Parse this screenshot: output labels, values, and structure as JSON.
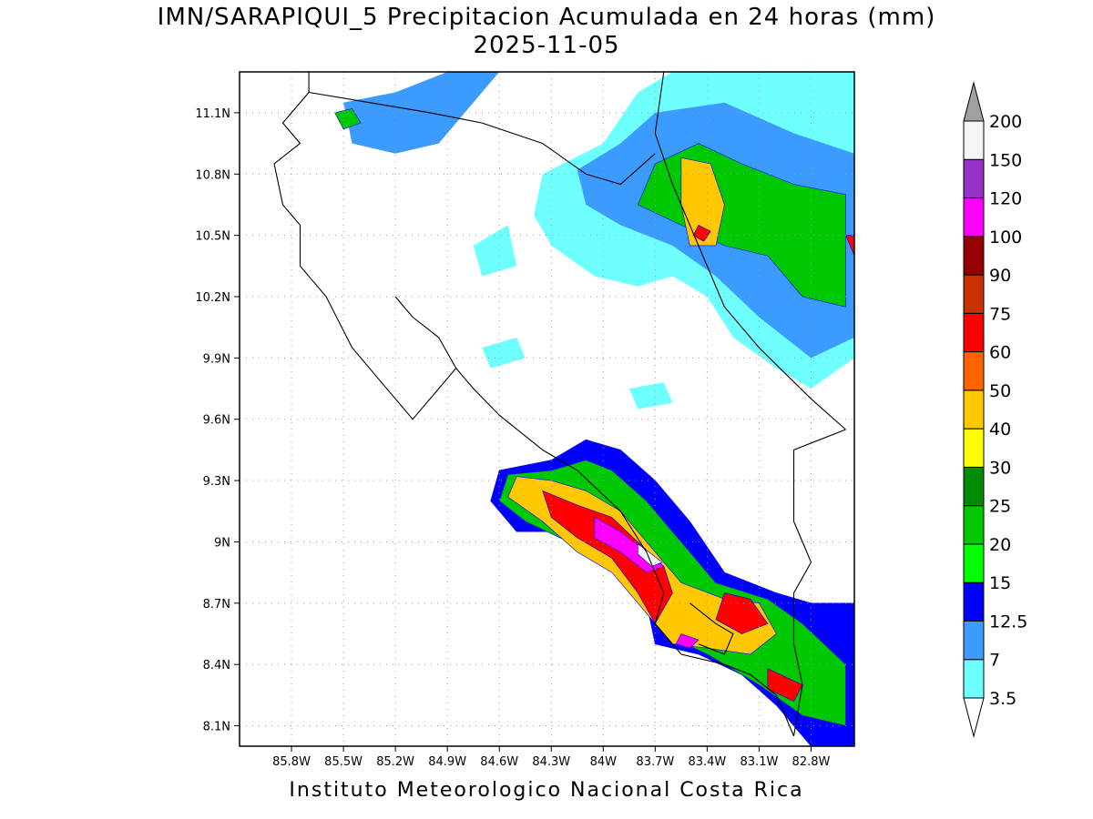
{
  "header": {
    "title_line1": "IMN/SARAPIQUI_5 Precipitacion Acumulada en 24 horas (mm)",
    "title_line2": "2025-11-05"
  },
  "footer": {
    "credit": "Instituto Meteorologico Nacional Costa Rica"
  },
  "map": {
    "lon_range": [
      -86.1,
      -82.55
    ],
    "lat_range": [
      8.0,
      11.3
    ],
    "lon_ticks": [
      {
        "value": -85.8,
        "label": "85.8W"
      },
      {
        "value": -85.5,
        "label": "85.5W"
      },
      {
        "value": -85.2,
        "label": "85.2W"
      },
      {
        "value": -84.9,
        "label": "84.9W"
      },
      {
        "value": -84.6,
        "label": "84.6W"
      },
      {
        "value": -84.3,
        "label": "84.3W"
      },
      {
        "value": -84.0,
        "label": "84W"
      },
      {
        "value": -83.7,
        "label": "83.7W"
      },
      {
        "value": -83.4,
        "label": "83.4W"
      },
      {
        "value": -83.1,
        "label": "83.1W"
      },
      {
        "value": -82.8,
        "label": "82.8W"
      }
    ],
    "lat_ticks": [
      {
        "value": 8.1,
        "label": "8.1N"
      },
      {
        "value": 8.4,
        "label": "8.4N"
      },
      {
        "value": 8.7,
        "label": "8.7N"
      },
      {
        "value": 9.0,
        "label": "9N"
      },
      {
        "value": 9.3,
        "label": "9.3N"
      },
      {
        "value": 9.6,
        "label": "9.6N"
      },
      {
        "value": 9.9,
        "label": "9.9N"
      },
      {
        "value": 10.2,
        "label": "10.2N"
      },
      {
        "value": 10.5,
        "label": "10.5N"
      },
      {
        "value": 10.8,
        "label": "10.8N"
      },
      {
        "value": 11.1,
        "label": "11.1N"
      }
    ],
    "grid": "dotted"
  },
  "colorbar": {
    "levels": [
      {
        "label": "3.5",
        "color": "#6effff"
      },
      {
        "label": "7",
        "color": "#3c9bff"
      },
      {
        "label": "12.5",
        "color": "#0000ff"
      },
      {
        "label": "15",
        "color": "#00ff00"
      },
      {
        "label": "20",
        "color": "#00c800"
      },
      {
        "label": "25",
        "color": "#008c00"
      },
      {
        "label": "30",
        "color": "#ffff00"
      },
      {
        "label": "40",
        "color": "#ffc800"
      },
      {
        "label": "50",
        "color": "#ff6400"
      },
      {
        "label": "60",
        "color": "#ff0000"
      },
      {
        "label": "75",
        "color": "#c83200"
      },
      {
        "label": "90",
        "color": "#960000"
      },
      {
        "label": "100",
        "color": "#ff00ff"
      },
      {
        "label": "120",
        "color": "#9632c8"
      },
      {
        "label": "150",
        "color": "#f5f5f5"
      },
      {
        "label": "200",
        "color": "#a0a0a0"
      }
    ],
    "end_below_color": "#ffffff",
    "end_above_color": "#a0a0a0"
  },
  "precip_regions": [
    {
      "name": "southern-pacific-band",
      "level": 2,
      "points": [
        [
          -84.6,
          9.35
        ],
        [
          -84.3,
          9.4
        ],
        [
          -84.1,
          9.5
        ],
        [
          -83.9,
          9.45
        ],
        [
          -83.7,
          9.3
        ],
        [
          -83.5,
          9.1
        ],
        [
          -83.3,
          8.85
        ],
        [
          -83.0,
          8.75
        ],
        [
          -82.8,
          8.7
        ],
        [
          -82.55,
          8.7
        ],
        [
          -82.55,
          8.0
        ],
        [
          -82.8,
          8.0
        ],
        [
          -83.0,
          8.2
        ],
        [
          -83.2,
          8.35
        ],
        [
          -83.45,
          8.45
        ],
        [
          -83.7,
          8.5
        ],
        [
          -83.75,
          8.7
        ],
        [
          -83.9,
          8.85
        ],
        [
          -84.1,
          8.95
        ],
        [
          -84.3,
          9.05
        ],
        [
          -84.5,
          9.05
        ],
        [
          -84.65,
          9.2
        ]
      ]
    },
    {
      "name": "southern-green-band",
      "level": 4,
      "points": [
        [
          -84.55,
          9.33
        ],
        [
          -84.3,
          9.35
        ],
        [
          -84.1,
          9.4
        ],
        [
          -83.95,
          9.35
        ],
        [
          -83.75,
          9.2
        ],
        [
          -83.55,
          9.0
        ],
        [
          -83.35,
          8.8
        ],
        [
          -83.05,
          8.72
        ],
        [
          -82.85,
          8.6
        ],
        [
          -82.6,
          8.4
        ],
        [
          -82.6,
          8.1
        ],
        [
          -82.85,
          8.15
        ],
        [
          -83.1,
          8.3
        ],
        [
          -83.4,
          8.45
        ],
        [
          -83.65,
          8.55
        ],
        [
          -83.75,
          8.72
        ],
        [
          -83.95,
          8.9
        ],
        [
          -84.2,
          9.0
        ],
        [
          -84.45,
          9.1
        ],
        [
          -84.6,
          9.2
        ]
      ]
    },
    {
      "name": "southern-yellow-core",
      "level": 7,
      "points": [
        [
          -84.5,
          9.32
        ],
        [
          -84.3,
          9.3
        ],
        [
          -84.1,
          9.25
        ],
        [
          -83.9,
          9.15
        ],
        [
          -83.7,
          8.95
        ],
        [
          -83.55,
          8.8
        ],
        [
          -83.3,
          8.72
        ],
        [
          -83.1,
          8.7
        ],
        [
          -83.0,
          8.55
        ],
        [
          -83.15,
          8.45
        ],
        [
          -83.4,
          8.48
        ],
        [
          -83.6,
          8.5
        ],
        [
          -83.75,
          8.65
        ],
        [
          -83.95,
          8.85
        ],
        [
          -84.15,
          8.95
        ],
        [
          -84.35,
          9.1
        ],
        [
          -84.55,
          9.22
        ]
      ]
    },
    {
      "name": "southern-red-core",
      "level": 9,
      "points": [
        [
          -84.35,
          9.25
        ],
        [
          -84.15,
          9.18
        ],
        [
          -83.95,
          9.12
        ],
        [
          -83.8,
          9.0
        ],
        [
          -83.65,
          8.88
        ],
        [
          -83.6,
          8.75
        ],
        [
          -83.7,
          8.6
        ],
        [
          -83.8,
          8.75
        ],
        [
          -83.95,
          8.92
        ],
        [
          -84.15,
          9.02
        ],
        [
          -84.3,
          9.12
        ]
      ]
    },
    {
      "name": "southern-magenta-core",
      "level": 12,
      "points": [
        [
          -84.05,
          9.12
        ],
        [
          -83.9,
          9.05
        ],
        [
          -83.75,
          8.95
        ],
        [
          -83.65,
          8.88
        ],
        [
          -83.75,
          8.85
        ],
        [
          -83.9,
          8.95
        ],
        [
          -84.05,
          9.02
        ]
      ]
    },
    {
      "name": "southern-white-spot",
      "level": 14,
      "points": [
        [
          -83.8,
          8.99
        ],
        [
          -83.72,
          8.94
        ],
        [
          -83.66,
          8.9
        ],
        [
          -83.72,
          8.88
        ],
        [
          -83.8,
          8.94
        ]
      ]
    },
    {
      "name": "southern-red-spot-east",
      "level": 9,
      "points": [
        [
          -83.3,
          8.75
        ],
        [
          -83.15,
          8.72
        ],
        [
          -83.05,
          8.6
        ],
        [
          -83.2,
          8.55
        ],
        [
          -83.35,
          8.62
        ]
      ]
    },
    {
      "name": "southern-magenta-spot",
      "level": 12,
      "points": [
        [
          -83.55,
          8.55
        ],
        [
          -83.45,
          8.52
        ],
        [
          -83.5,
          8.48
        ],
        [
          -83.58,
          8.5
        ]
      ]
    },
    {
      "name": "southern-red-spot-far",
      "level": 9,
      "points": [
        [
          -83.05,
          8.38
        ],
        [
          -82.85,
          8.3
        ],
        [
          -82.9,
          8.22
        ],
        [
          -83.05,
          8.28
        ]
      ]
    },
    {
      "name": "northeast-cyan-area",
      "level": 0,
      "points": [
        [
          -84.35,
          10.8
        ],
        [
          -84.0,
          10.95
        ],
        [
          -83.8,
          11.2
        ],
        [
          -83.6,
          11.3
        ],
        [
          -82.55,
          11.3
        ],
        [
          -82.55,
          9.9
        ],
        [
          -82.8,
          9.75
        ],
        [
          -83.0,
          9.85
        ],
        [
          -83.25,
          10.0
        ],
        [
          -83.4,
          10.2
        ],
        [
          -83.6,
          10.3
        ],
        [
          -83.8,
          10.25
        ],
        [
          -84.05,
          10.3
        ],
        [
          -84.3,
          10.45
        ],
        [
          -84.4,
          10.6
        ]
      ]
    },
    {
      "name": "northeast-blue-area",
      "level": 1,
      "points": [
        [
          -84.15,
          10.82
        ],
        [
          -83.9,
          10.95
        ],
        [
          -83.7,
          11.1
        ],
        [
          -83.3,
          11.15
        ],
        [
          -82.9,
          11.0
        ],
        [
          -82.55,
          10.9
        ],
        [
          -82.55,
          10.0
        ],
        [
          -82.8,
          9.9
        ],
        [
          -83.1,
          10.1
        ],
        [
          -83.35,
          10.3
        ],
        [
          -83.6,
          10.45
        ],
        [
          -83.9,
          10.55
        ],
        [
          -84.1,
          10.65
        ]
      ]
    },
    {
      "name": "northeast-green-area",
      "level": 4,
      "points": [
        [
          -83.7,
          10.85
        ],
        [
          -83.45,
          10.95
        ],
        [
          -83.2,
          10.85
        ],
        [
          -82.9,
          10.75
        ],
        [
          -82.6,
          10.7
        ],
        [
          -82.6,
          10.15
        ],
        [
          -82.85,
          10.2
        ],
        [
          -83.05,
          10.4
        ],
        [
          -83.3,
          10.45
        ],
        [
          -83.55,
          10.55
        ],
        [
          -83.8,
          10.65
        ]
      ]
    },
    {
      "name": "northeast-yellow-core",
      "level": 7,
      "points": [
        [
          -83.55,
          10.88
        ],
        [
          -83.38,
          10.85
        ],
        [
          -83.3,
          10.65
        ],
        [
          -83.35,
          10.45
        ],
        [
          -83.5,
          10.45
        ],
        [
          -83.55,
          10.65
        ]
      ]
    },
    {
      "name": "northeast-red-spot",
      "level": 9,
      "points": [
        [
          -83.45,
          10.55
        ],
        [
          -83.38,
          10.52
        ],
        [
          -83.42,
          10.47
        ],
        [
          -83.48,
          10.5
        ]
      ]
    },
    {
      "name": "northeast-east-red",
      "level": 9,
      "points": [
        [
          -82.6,
          10.5
        ],
        [
          -82.55,
          10.4
        ],
        [
          -82.55,
          10.5
        ]
      ]
    },
    {
      "name": "northwest-band",
      "level": 1,
      "points": [
        [
          -85.5,
          11.15
        ],
        [
          -85.2,
          11.2
        ],
        [
          -84.9,
          11.3
        ],
        [
          -84.6,
          11.3
        ],
        [
          -84.8,
          11.1
        ],
        [
          -84.95,
          10.95
        ],
        [
          -85.2,
          10.9
        ],
        [
          -85.45,
          10.95
        ]
      ]
    },
    {
      "name": "northwest-green-spot",
      "level": 4,
      "points": [
        [
          -85.55,
          11.1
        ],
        [
          -85.45,
          11.12
        ],
        [
          -85.4,
          11.05
        ],
        [
          -85.5,
          11.02
        ]
      ]
    },
    {
      "name": "central-cyan-1",
      "level": 0,
      "points": [
        [
          -84.7,
          9.95
        ],
        [
          -84.5,
          10.0
        ],
        [
          -84.45,
          9.9
        ],
        [
          -84.65,
          9.85
        ]
      ]
    },
    {
      "name": "central-cyan-2",
      "level": 0,
      "points": [
        [
          -83.85,
          9.75
        ],
        [
          -83.65,
          9.78
        ],
        [
          -83.6,
          9.68
        ],
        [
          -83.8,
          9.65
        ]
      ]
    },
    {
      "name": "central-cyan-3",
      "level": 0,
      "points": [
        [
          -84.75,
          10.45
        ],
        [
          -84.55,
          10.55
        ],
        [
          -84.5,
          10.35
        ],
        [
          -84.7,
          10.3
        ]
      ]
    }
  ],
  "coastlines": [
    {
      "name": "nicoya-pacific-coast",
      "points": [
        [
          -85.7,
          11.3
        ],
        [
          -85.7,
          11.2
        ],
        [
          -85.85,
          11.05
        ],
        [
          -85.75,
          10.95
        ],
        [
          -85.9,
          10.85
        ],
        [
          -85.85,
          10.65
        ],
        [
          -85.75,
          10.55
        ],
        [
          -85.75,
          10.35
        ],
        [
          -85.6,
          10.2
        ],
        [
          -85.45,
          9.95
        ],
        [
          -85.3,
          9.8
        ],
        [
          -85.1,
          9.6
        ],
        [
          -84.95,
          9.75
        ],
        [
          -84.85,
          9.85
        ],
        [
          -84.95,
          10.0
        ],
        [
          -85.1,
          10.1
        ],
        [
          -85.2,
          10.2
        ]
      ]
    },
    {
      "name": "central-pacific-coast",
      "points": [
        [
          -84.85,
          9.85
        ],
        [
          -84.75,
          9.75
        ],
        [
          -84.6,
          9.62
        ],
        [
          -84.35,
          9.45
        ],
        [
          -84.15,
          9.35
        ],
        [
          -83.9,
          9.15
        ],
        [
          -83.75,
          8.95
        ],
        [
          -83.65,
          8.75
        ],
        [
          -83.7,
          8.6
        ],
        [
          -83.55,
          8.45
        ],
        [
          -83.3,
          8.4
        ],
        [
          -83.15,
          8.35
        ],
        [
          -83.0,
          8.25
        ],
        [
          -82.9,
          8.05
        ]
      ]
    },
    {
      "name": "caribbean-coast",
      "points": [
        [
          -83.65,
          11.3
        ],
        [
          -83.7,
          11.0
        ],
        [
          -83.6,
          10.75
        ],
        [
          -83.45,
          10.45
        ],
        [
          -83.3,
          10.15
        ],
        [
          -83.1,
          9.95
        ],
        [
          -82.8,
          9.7
        ],
        [
          -82.6,
          9.55
        ]
      ]
    },
    {
      "name": "nicaragua-border",
      "points": [
        [
          -85.7,
          11.2
        ],
        [
          -85.0,
          11.1
        ],
        [
          -84.7,
          11.05
        ],
        [
          -84.35,
          10.95
        ],
        [
          -84.1,
          10.8
        ],
        [
          -83.9,
          10.75
        ],
        [
          -83.7,
          10.9
        ]
      ]
    },
    {
      "name": "panama-border",
      "points": [
        [
          -82.6,
          9.55
        ],
        [
          -82.9,
          9.45
        ],
        [
          -82.9,
          9.1
        ],
        [
          -82.8,
          8.9
        ],
        [
          -82.9,
          8.75
        ],
        [
          -82.9,
          8.5
        ],
        [
          -82.85,
          8.3
        ],
        [
          -82.9,
          8.05
        ]
      ]
    },
    {
      "name": "osa-outline",
      "points": [
        [
          -83.5,
          8.7
        ],
        [
          -83.35,
          8.6
        ],
        [
          -83.25,
          8.55
        ],
        [
          -83.3,
          8.45
        ],
        [
          -83.45,
          8.5
        ]
      ]
    }
  ]
}
